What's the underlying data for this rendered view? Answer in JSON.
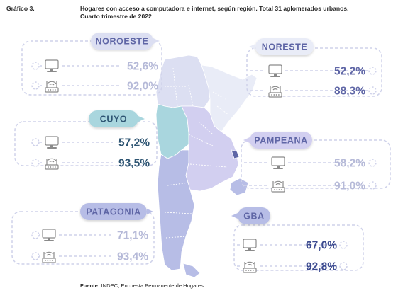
{
  "figure_label": "Gráfico 3.",
  "title_line1": "Hogares con acceso a computadora e internet, según región. Total 31 aglomerados urbanos.",
  "title_line2": "Cuarto trimestre de 2022",
  "source_prefix": "Fuente:",
  "source_text": " INDEC, Encuesta Permanente de Hogares.",
  "icons": {
    "computer": "computer-icon",
    "internet": "wifi-router-icon"
  },
  "chart_data": {
    "type": "map",
    "categories": [
      "NOROESTE",
      "NORESTE",
      "CUYO",
      "PAMPEANA",
      "PATAGONIA",
      "GBA"
    ],
    "series": [
      {
        "name": "computadora",
        "icon": "computer-icon",
        "values": [
          52.6,
          52.2,
          57.2,
          58.2,
          71.1,
          67.0
        ]
      },
      {
        "name": "internet",
        "icon": "wifi-router-icon",
        "values": [
          92.0,
          88.3,
          93.5,
          91.0,
          93.4,
          92.8
        ]
      }
    ],
    "labels": {
      "NOROESTE": {
        "computer": "52,6%",
        "internet": "92,0%"
      },
      "NORESTE": {
        "computer": "52,2%",
        "internet": "88,3%"
      },
      "CUYO": {
        "computer": "57,2%",
        "internet": "93,5%"
      },
      "PAMPEANA": {
        "computer": "58,2%",
        "internet": "91,0%"
      },
      "PATAGONIA": {
        "computer": "71,1%",
        "internet": "93,4%"
      },
      "GBA": {
        "computer": "67,0%",
        "internet": "92,8%"
      }
    },
    "colors": {
      "NOROESTE": {
        "fill": "#dcdff2",
        "label": "#5f66a6",
        "text": "#b6bad8"
      },
      "NORESTE": {
        "fill": "#e9ecf7",
        "label": "#5f66a6",
        "text": "#5f66a6"
      },
      "CUYO": {
        "fill": "#a9d6de",
        "label": "#2e5573",
        "text": "#2e5573"
      },
      "PAMPEANA": {
        "fill": "#d2cff0",
        "label": "#5f66a6",
        "text": "#b6bad8"
      },
      "PATAGONIA": {
        "fill": "#b7bde6",
        "label": "#5f66a6",
        "text": "#b6bad8"
      },
      "GBA": {
        "fill": "#b7bde6",
        "label": "#5f66a6",
        "text": "#3b4a8f"
      }
    }
  }
}
